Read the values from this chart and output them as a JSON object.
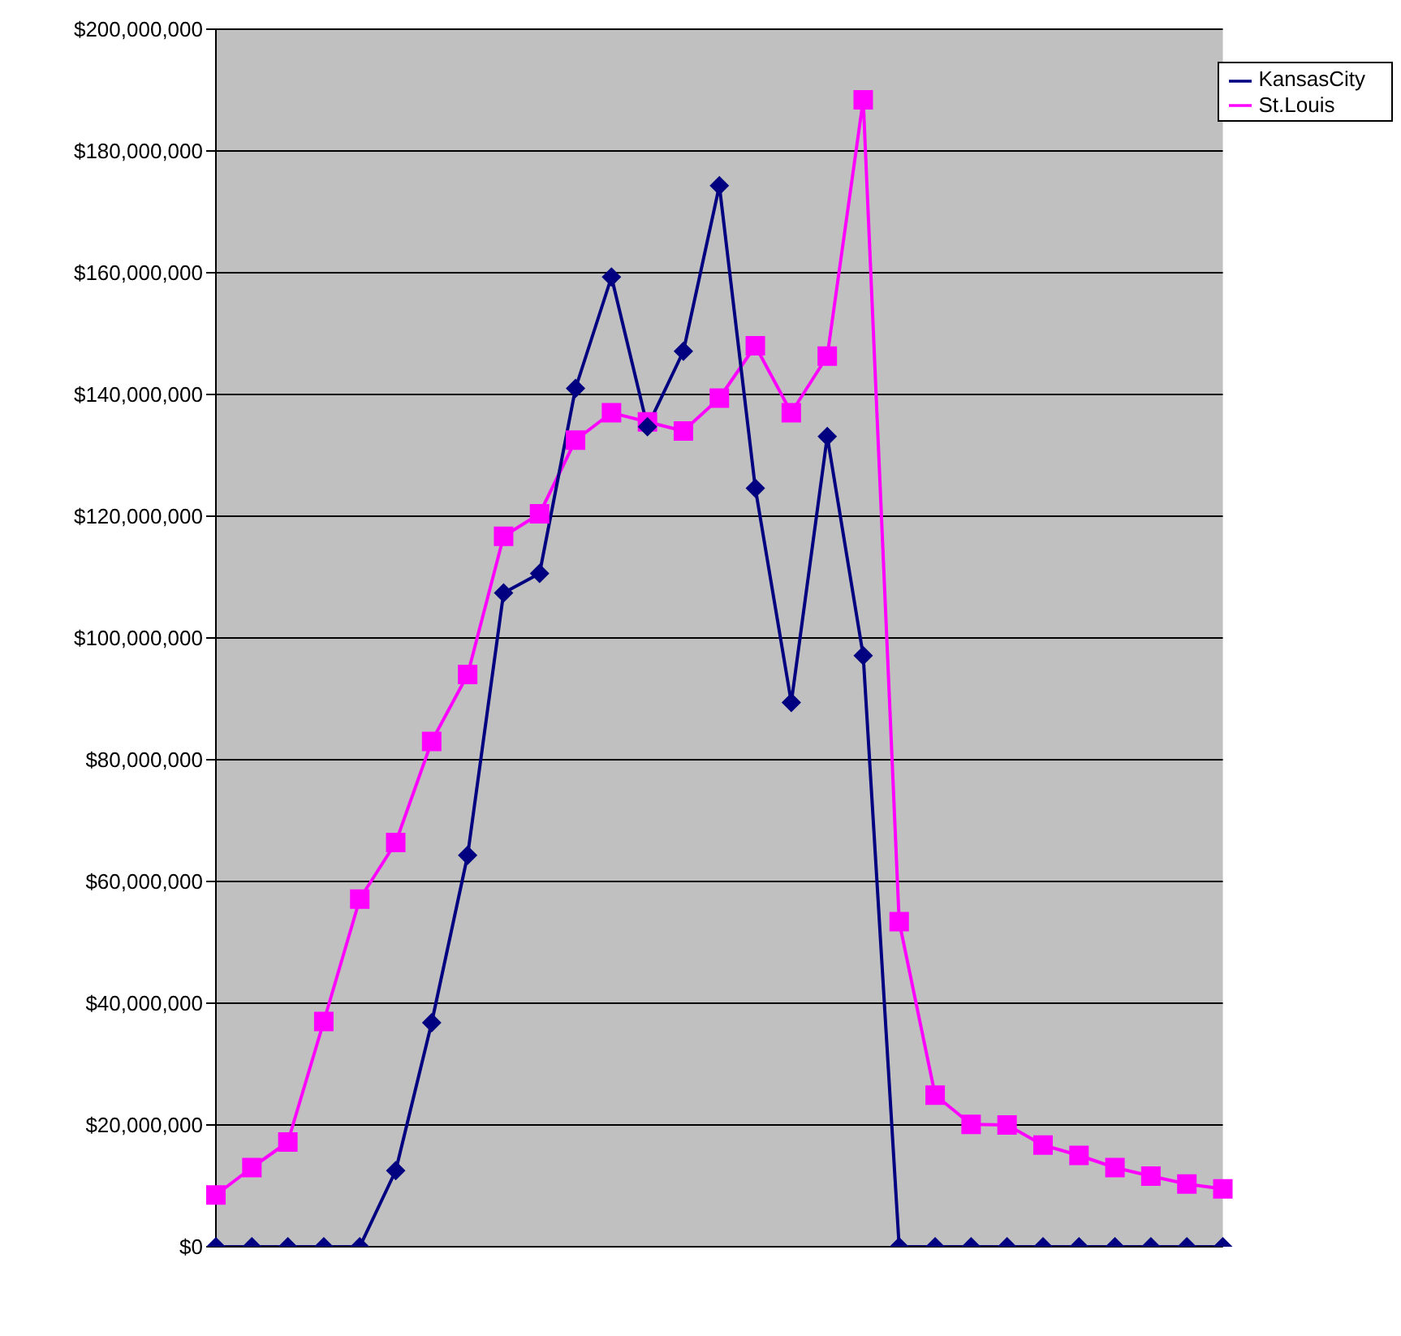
{
  "chart_data": {
    "type": "line",
    "categories": [
      null,
      null,
      null,
      null,
      null,
      null,
      null,
      null,
      null,
      null,
      null,
      null,
      null,
      null,
      null,
      null,
      null,
      null,
      null,
      null,
      null,
      null,
      null,
      null,
      null,
      null,
      null,
      null,
      null
    ],
    "series": [
      {
        "name": "KansasCity",
        "color": "#000080",
        "marker": "diamond",
        "values": [
          0,
          0,
          0,
          0,
          0,
          12500000.0,
          36800000.0,
          64300000.0,
          107400000.0,
          110600000.0,
          141000000.0,
          159300000.0,
          134700000.0,
          147100000.0,
          174300000.0,
          124600000.0,
          89400000.0,
          133100000.0,
          97100000.0,
          0,
          0,
          0,
          0,
          0,
          0,
          0,
          0,
          0,
          0
        ]
      },
      {
        "name": "St.Louis",
        "color": "#ff00ff",
        "marker": "square",
        "values": [
          8500000.0,
          13000000.0,
          17200000.0,
          37000000.0,
          57100000.0,
          66400000.0,
          83000000.0,
          94000000.0,
          116700000.0,
          120400000.0,
          132500000.0,
          137000000.0,
          135500000.0,
          134000000.0,
          139400000.0,
          148000000.0,
          137000000.0,
          146300000.0,
          188400000.0,
          53400000.0,
          24900000.0,
          20100000.0,
          20000000.0,
          16700000.0,
          15000000.0,
          13000000.0,
          11600000.0,
          10300000.0,
          9500000.0
        ]
      }
    ],
    "ylim": [
      0,
      200000000
    ],
    "yticks": [
      {
        "value": 0,
        "label": "$0"
      },
      {
        "value": 20000000,
        "label": "$20,000,000"
      },
      {
        "value": 40000000,
        "label": "$40,000,000"
      },
      {
        "value": 60000000,
        "label": "$60,000,000"
      },
      {
        "value": 80000000,
        "label": "$80,000,000"
      },
      {
        "value": 100000000,
        "label": "$100,000,000"
      },
      {
        "value": 120000000,
        "label": "$120,000,000"
      },
      {
        "value": 140000000,
        "label": "$140,000,000"
      },
      {
        "value": 160000000,
        "label": "$160,000,000"
      },
      {
        "value": 180000000,
        "label": "$180,000,000"
      },
      {
        "value": 200000000,
        "label": "$200,000,000"
      }
    ],
    "grid": "y",
    "legend": "top right",
    "tick_labels": "y"
  }
}
